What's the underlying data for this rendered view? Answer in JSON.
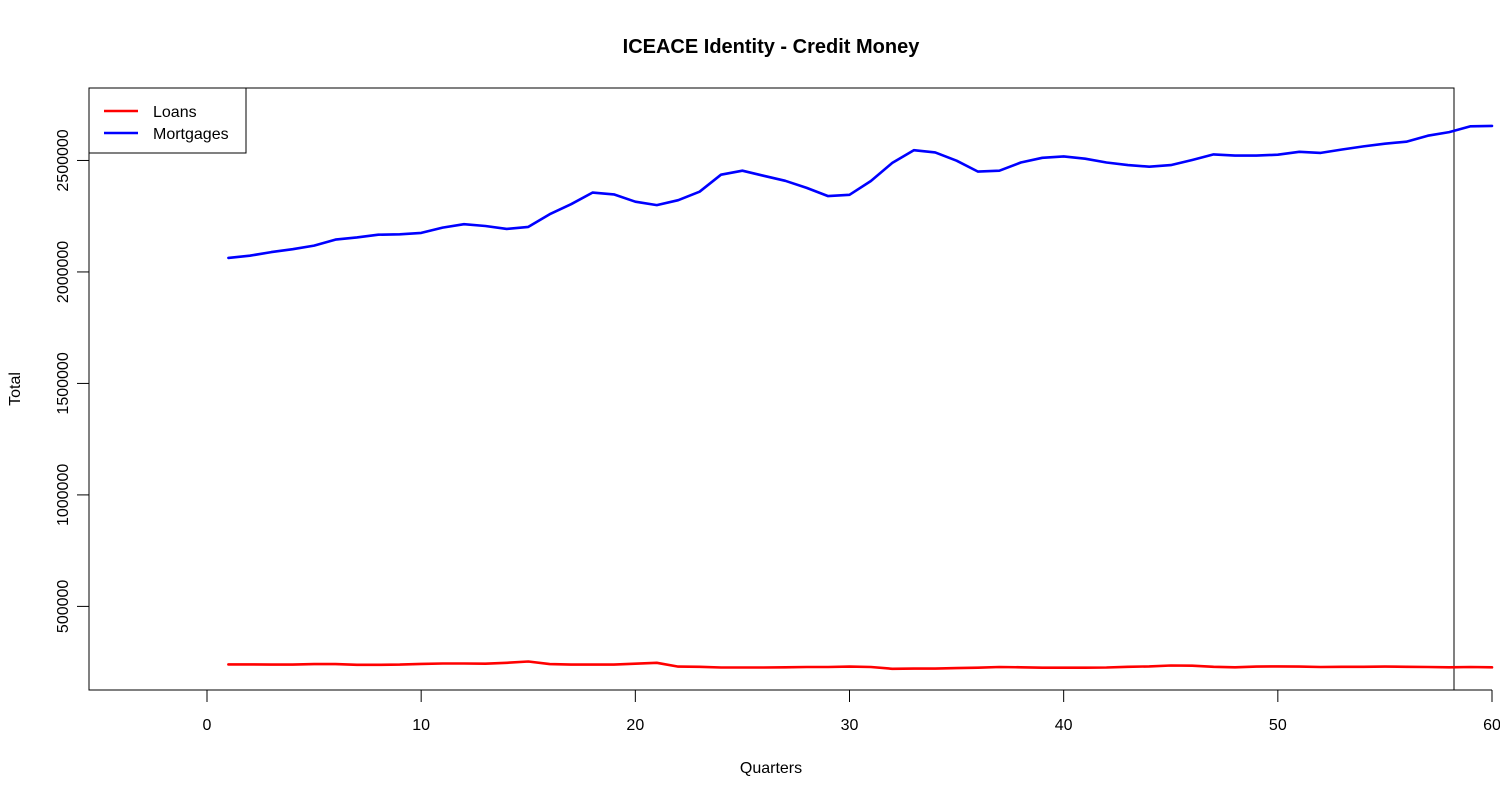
{
  "chart_data": {
    "type": "line",
    "title": "ICEACE Identity - Credit Money",
    "xlabel": "Quarters",
    "ylabel": "Total",
    "xlim": [
      0,
      60
    ],
    "ylim": [
      125000,
      2825000
    ],
    "x_ticks": [
      0,
      10,
      20,
      30,
      40,
      50,
      60
    ],
    "x_tick_labels": [
      "0",
      "10",
      "20",
      "30",
      "40",
      "50",
      "60"
    ],
    "y_ticks": [
      500000,
      1000000,
      1500000,
      2000000,
      2500000
    ],
    "y_tick_labels": [
      "500000",
      "1000000",
      "1500000",
      "2000000",
      "2500000"
    ],
    "grid": false,
    "legend_position": "top-left",
    "x": [
      1,
      2,
      3,
      4,
      5,
      6,
      7,
      8,
      9,
      10,
      11,
      12,
      13,
      14,
      15,
      16,
      17,
      18,
      19,
      20,
      21,
      22,
      23,
      24,
      25,
      26,
      27,
      28,
      29,
      30,
      31,
      32,
      33,
      34,
      35,
      36,
      37,
      38,
      39,
      40,
      41,
      42,
      43,
      44,
      45,
      46,
      47,
      48,
      49,
      50,
      51,
      52,
      53,
      54,
      55,
      56,
      57,
      58,
      59,
      60
    ],
    "series": [
      {
        "name": "Loans",
        "color": "#ff0000",
        "values": [
          240000,
          240000,
          239000,
          239000,
          241000,
          241000,
          238000,
          238000,
          239000,
          242000,
          244000,
          244000,
          243000,
          247000,
          253000,
          241000,
          239000,
          239000,
          239000,
          243000,
          247000,
          230000,
          229000,
          226000,
          226000,
          226000,
          227000,
          228000,
          228000,
          230000,
          228000,
          220000,
          221000,
          221000,
          223000,
          225000,
          228000,
          227000,
          225000,
          225000,
          225000,
          226000,
          229000,
          231000,
          235000,
          234000,
          229000,
          227000,
          230000,
          231000,
          230000,
          228000,
          229000,
          229000,
          230000,
          229000,
          228000,
          227000,
          228000,
          227000
        ]
      },
      {
        "name": "Mortgages",
        "color": "#0000ff",
        "values": [
          2063000,
          2073000,
          2089000,
          2102000,
          2118000,
          2145000,
          2155000,
          2167000,
          2169000,
          2175000,
          2199000,
          2214000,
          2206000,
          2193000,
          2202000,
          2259000,
          2304000,
          2356000,
          2348000,
          2315000,
          2300000,
          2322000,
          2360000,
          2436000,
          2454000,
          2431000,
          2409000,
          2377000,
          2340000,
          2346000,
          2408000,
          2489000,
          2546000,
          2536000,
          2499000,
          2450000,
          2454000,
          2491000,
          2512000,
          2518000,
          2508000,
          2491000,
          2479000,
          2472000,
          2479000,
          2502000,
          2527000,
          2522000,
          2522000,
          2526000,
          2539000,
          2534000,
          2549000,
          2563000,
          2575000,
          2584000,
          2611000,
          2627000,
          2653000,
          2655000
        ]
      }
    ]
  }
}
